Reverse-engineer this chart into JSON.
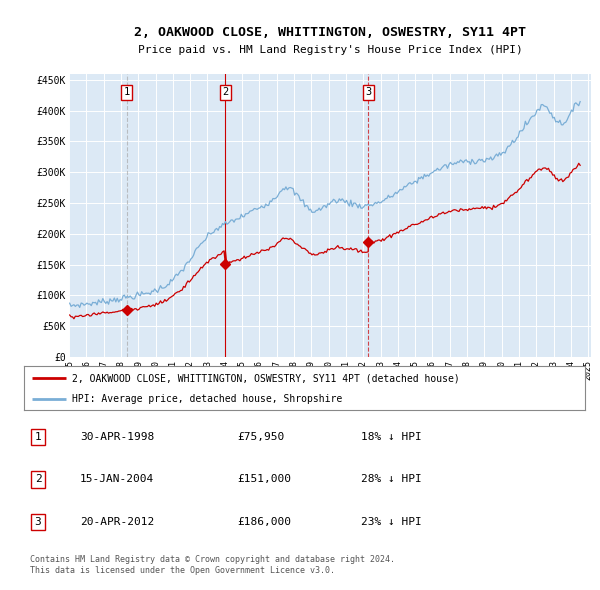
{
  "title": "2, OAKWOOD CLOSE, WHITTINGTON, OSWESTRY, SY11 4PT",
  "subtitle": "Price paid vs. HM Land Registry's House Price Index (HPI)",
  "sale_dates_str": [
    "1998-04-30",
    "2004-01-15",
    "2012-04-20"
  ],
  "sale_prices": [
    75950,
    151000,
    186000
  ],
  "sale_labels": [
    "1",
    "2",
    "3"
  ],
  "sale_vline_styles": [
    "dashed_gray",
    "solid_red",
    "dashed_red"
  ],
  "sale_info": [
    [
      "1",
      "30-APR-1998",
      "£75,950",
      "18% ↓ HPI"
    ],
    [
      "2",
      "15-JAN-2004",
      "£151,000",
      "28% ↓ HPI"
    ],
    [
      "3",
      "20-APR-2012",
      "£186,000",
      "23% ↓ HPI"
    ]
  ],
  "legend_property": "2, OAKWOOD CLOSE, WHITTINGTON, OSWESTRY, SY11 4PT (detached house)",
  "legend_hpi": "HPI: Average price, detached house, Shropshire",
  "property_color": "#cc0000",
  "hpi_color": "#7aaed6",
  "vline1_color": "#aaaaaa",
  "vline1_style": "--",
  "vline2_color": "#cc0000",
  "vline2_style": "-",
  "vline3_color": "#cc0000",
  "vline3_style": "--",
  "footnote1": "Contains HM Land Registry data © Crown copyright and database right 2024.",
  "footnote2": "This data is licensed under the Open Government Licence v3.0.",
  "ylim": [
    0,
    460000
  ],
  "yticks": [
    0,
    50000,
    100000,
    150000,
    200000,
    250000,
    300000,
    350000,
    400000,
    450000
  ],
  "ytick_labels": [
    "£0",
    "£50K",
    "£100K",
    "£150K",
    "£200K",
    "£250K",
    "£300K",
    "£350K",
    "£400K",
    "£450K"
  ],
  "bg_color": "#dce9f5",
  "hpi_anchors_x": [
    1995.0,
    1996.0,
    1997.0,
    1998.0,
    1999.0,
    2000.0,
    2001.0,
    2002.0,
    2003.0,
    2004.0,
    2005.0,
    2006.0,
    2007.0,
    2007.5,
    2008.0,
    2008.5,
    2009.0,
    2009.5,
    2010.0,
    2010.5,
    2011.0,
    2011.5,
    2012.0,
    2012.5,
    2013.0,
    2014.0,
    2015.0,
    2016.0,
    2017.0,
    2018.0,
    2019.0,
    2020.0,
    2021.0,
    2022.0,
    2022.5,
    2023.0,
    2023.5,
    2024.0,
    2024.5
  ],
  "hpi_anchors_y": [
    83000,
    86000,
    90000,
    95000,
    100000,
    108000,
    125000,
    158000,
    195000,
    215000,
    228000,
    243000,
    262000,
    276000,
    268000,
    252000,
    238000,
    240000,
    248000,
    255000,
    252000,
    248000,
    245000,
    248000,
    252000,
    268000,
    285000,
    300000,
    312000,
    318000,
    320000,
    330000,
    362000,
    398000,
    408000,
    390000,
    380000,
    395000,
    415000
  ]
}
